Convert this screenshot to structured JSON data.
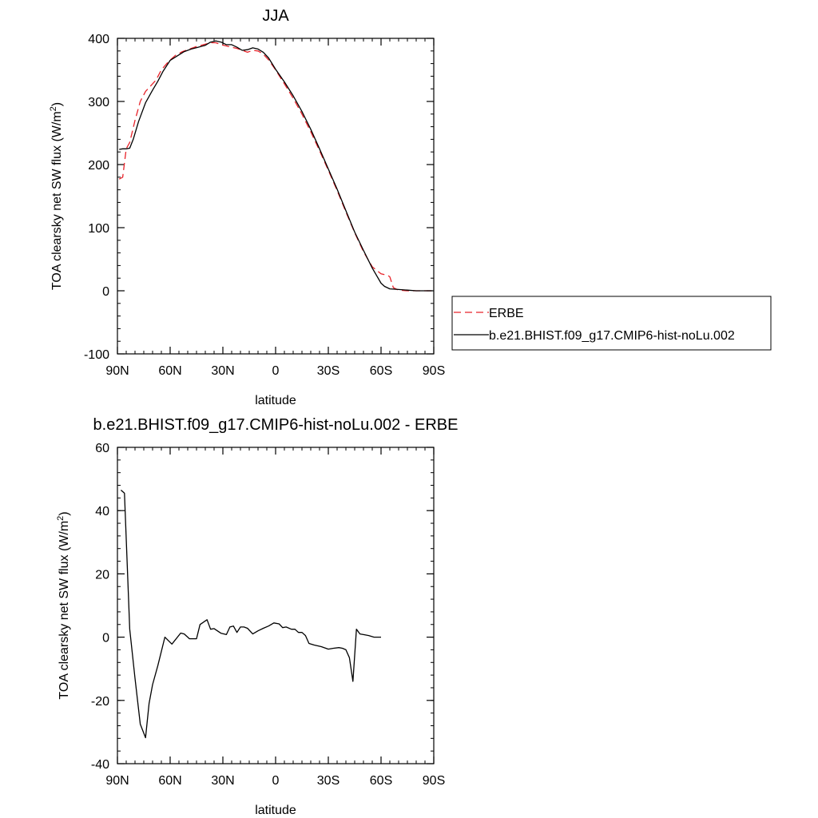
{
  "colors": {
    "erbe": "#e8232a",
    "model": "#000000",
    "axis": "#000000",
    "legend_border": "#000000"
  },
  "chart_data": [
    {
      "type": "line",
      "title": "JJA",
      "xlabel": "latitude",
      "ylabel_main": "TOA clearsky net SW flux (W/m",
      "ylabel_sup": "2",
      "ylabel_tail": ")",
      "xlim": [
        -90,
        90
      ],
      "ylim": [
        -100,
        400
      ],
      "xticks": [
        {
          "v": -90,
          "label": "90N"
        },
        {
          "v": -60,
          "label": "60N"
        },
        {
          "v": -30,
          "label": "30N"
        },
        {
          "v": 0,
          "label": "0"
        },
        {
          "v": 30,
          "label": "30S"
        },
        {
          "v": 60,
          "label": "60S"
        },
        {
          "v": 90,
          "label": "90S"
        }
      ],
      "yticks": [
        {
          "v": -100,
          "label": "-100"
        },
        {
          "v": 0,
          "label": "0"
        },
        {
          "v": 100,
          "label": "100"
        },
        {
          "v": 200,
          "label": "200"
        },
        {
          "v": 300,
          "label": "300"
        },
        {
          "v": 400,
          "label": "400"
        }
      ],
      "x_minor_step": 5,
      "y_minor_step": 20,
      "legend_position": "right",
      "series": [
        {
          "name": "ERBE",
          "style": "dashed",
          "color": "#e8232a",
          "points": [
            [
              -89,
              177
            ],
            [
              -87,
              180
            ],
            [
              -85,
              225
            ],
            [
              -83,
              235
            ],
            [
              -80,
              270
            ],
            [
              -77,
              300
            ],
            [
              -74,
              316
            ],
            [
              -71,
              325
            ],
            [
              -68,
              334
            ],
            [
              -65,
              350
            ],
            [
              -61,
              363
            ],
            [
              -57,
              373
            ],
            [
              -53,
              379
            ],
            [
              -49,
              383
            ],
            [
              -45,
              387
            ],
            [
              -41,
              390
            ],
            [
              -37,
              393
            ],
            [
              -34,
              393
            ],
            [
              -31,
              390
            ],
            [
              -28,
              388
            ],
            [
              -25,
              386
            ],
            [
              -22,
              384
            ],
            [
              -19,
              381
            ],
            [
              -16,
              378
            ],
            [
              -13,
              381
            ],
            [
              -10,
              380
            ],
            [
              -7,
              375
            ],
            [
              -4,
              366
            ],
            [
              0,
              350
            ],
            [
              5,
              328
            ],
            [
              10,
              305
            ],
            [
              15,
              280
            ],
            [
              20,
              252
            ],
            [
              25,
              222
            ],
            [
              30,
              191
            ],
            [
              35,
              159
            ],
            [
              40,
              125
            ],
            [
              45,
              92
            ],
            [
              50,
              62
            ],
            [
              55,
              38
            ],
            [
              60,
              27
            ],
            [
              64,
              24
            ],
            [
              65,
              22
            ],
            [
              67,
              5
            ],
            [
              70,
              1
            ],
            [
              75,
              0
            ],
            [
              80,
              0
            ],
            [
              85,
              0
            ],
            [
              89,
              0
            ]
          ]
        },
        {
          "name": "b.e21.BHIST.f09_g17.CMIP6-hist-noLu.002",
          "style": "solid",
          "color": "#000000",
          "points": [
            [
              -89,
              224
            ],
            [
              -87,
              225
            ],
            [
              -85,
              225
            ],
            [
              -83,
              226
            ],
            [
              -81,
              240
            ],
            [
              -78,
              268
            ],
            [
              -74,
              298
            ],
            [
              -70,
              318
            ],
            [
              -67,
              332
            ],
            [
              -64,
              348
            ],
            [
              -60,
              365
            ],
            [
              -56,
              372
            ],
            [
              -52,
              379
            ],
            [
              -48,
              383
            ],
            [
              -44,
              386
            ],
            [
              -40,
              389
            ],
            [
              -37,
              394
            ],
            [
              -34,
              396
            ],
            [
              -31,
              394
            ],
            [
              -28,
              390
            ],
            [
              -25,
              390
            ],
            [
              -22,
              386
            ],
            [
              -19,
              381
            ],
            [
              -16,
              382
            ],
            [
              -13,
              385
            ],
            [
              -10,
              383
            ],
            [
              -7,
              378
            ],
            [
              -4,
              369
            ],
            [
              0,
              351
            ],
            [
              5,
              331
            ],
            [
              10,
              309
            ],
            [
              15,
              284
            ],
            [
              20,
              256
            ],
            [
              25,
              225
            ],
            [
              30,
              193
            ],
            [
              35,
              161
            ],
            [
              40,
              127
            ],
            [
              45,
              93
            ],
            [
              50,
              64
            ],
            [
              55,
              36
            ],
            [
              60,
              12
            ],
            [
              62,
              7
            ],
            [
              65,
              3
            ],
            [
              70,
              2
            ],
            [
              75,
              1
            ],
            [
              80,
              0
            ],
            [
              85,
              0
            ],
            [
              89,
              0
            ]
          ]
        }
      ]
    },
    {
      "type": "line",
      "title": "b.e21.BHIST.f09_g17.CMIP6-hist-noLu.002 - ERBE",
      "xlabel": "latitude",
      "ylabel_main": "TOA clearsky net SW flux (W/m",
      "ylabel_sup": "2",
      "ylabel_tail": ")",
      "xlim": [
        -90,
        90
      ],
      "ylim": [
        -40,
        60
      ],
      "xticks": [
        {
          "v": -90,
          "label": "90N"
        },
        {
          "v": -60,
          "label": "60N"
        },
        {
          "v": -30,
          "label": "30N"
        },
        {
          "v": 0,
          "label": "0"
        },
        {
          "v": 30,
          "label": "30S"
        },
        {
          "v": 60,
          "label": "60S"
        },
        {
          "v": 90,
          "label": "90S"
        }
      ],
      "yticks": [
        {
          "v": -40,
          "label": "-40"
        },
        {
          "v": -20,
          "label": "-20"
        },
        {
          "v": 0,
          "label": "0"
        },
        {
          "v": 20,
          "label": "20"
        },
        {
          "v": 40,
          "label": "40"
        },
        {
          "v": 60,
          "label": "60"
        }
      ],
      "x_minor_step": 5,
      "y_minor_step": 4,
      "series": [
        {
          "name": "",
          "style": "solid",
          "color": "#000000",
          "points": [
            [
              -88,
              46.5
            ],
            [
              -86,
              45.5
            ],
            [
              -83,
              2.5
            ],
            [
              -80,
              -13
            ],
            [
              -77,
              -27.5
            ],
            [
              -74,
              -31.8
            ],
            [
              -72,
              -21
            ],
            [
              -70,
              -15
            ],
            [
              -67,
              -9
            ],
            [
              -63,
              0
            ],
            [
              -59,
              -2.2
            ],
            [
              -54,
              1.3
            ],
            [
              -52,
              1.0
            ],
            [
              -49,
              -0.5
            ],
            [
              -45,
              -0.5
            ],
            [
              -43,
              4
            ],
            [
              -39,
              5.5
            ],
            [
              -37,
              2.5
            ],
            [
              -35,
              2.7
            ],
            [
              -31,
              1.2
            ],
            [
              -28,
              0.8
            ],
            [
              -26,
              3.2
            ],
            [
              -24,
              3.5
            ],
            [
              -22,
              1.5
            ],
            [
              -20,
              3.2
            ],
            [
              -18,
              3.2
            ],
            [
              -16,
              2.8
            ],
            [
              -13,
              1.0
            ],
            [
              -10,
              2.0
            ],
            [
              -7,
              2.8
            ],
            [
              -4,
              3.5
            ],
            [
              -1,
              4.5
            ],
            [
              2,
              4.2
            ],
            [
              4,
              3.0
            ],
            [
              6,
              3.2
            ],
            [
              9,
              2.5
            ],
            [
              11,
              2.5
            ],
            [
              13,
              1.5
            ],
            [
              15,
              1.5
            ],
            [
              17,
              0.5
            ],
            [
              19,
              -2
            ],
            [
              22,
              -2.5
            ],
            [
              26,
              -3
            ],
            [
              30,
              -3.8
            ],
            [
              33,
              -3.5
            ],
            [
              36,
              -3.3
            ],
            [
              38,
              -3.5
            ],
            [
              40,
              -4
            ],
            [
              42,
              -6.5
            ],
            [
              44,
              -14
            ],
            [
              46,
              2.5
            ],
            [
              48,
              1
            ],
            [
              50,
              0.8
            ],
            [
              53,
              0.5
            ],
            [
              56,
              0
            ],
            [
              58,
              0
            ],
            [
              60,
              0
            ]
          ]
        }
      ]
    }
  ],
  "legend": {
    "items": [
      {
        "label": "ERBE",
        "style": "dashed",
        "color": "#e8232a"
      },
      {
        "label": "b.e21.BHIST.f09_g17.CMIP6-hist-noLu.002",
        "style": "solid",
        "color": "#000000"
      }
    ]
  }
}
